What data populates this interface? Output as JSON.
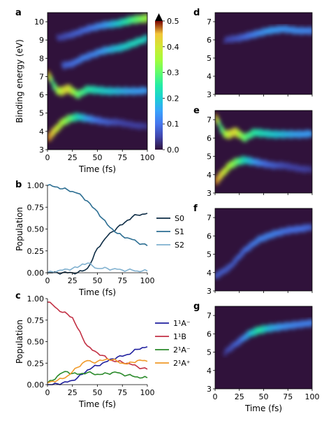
{
  "chart_data": [
    {
      "panel": "a",
      "type": "heatmap",
      "xlabel": "Time (fs)",
      "ylabel": "Binding energy (eV)",
      "xlim": [
        0,
        100
      ],
      "ylim": [
        3,
        10.5
      ],
      "xticks": [
        "0",
        "25",
        "50",
        "75",
        "100"
      ],
      "yticks": [
        "3",
        "4",
        "5",
        "6",
        "7",
        "8",
        "9",
        "10"
      ],
      "colorbar": {
        "min": 0.0,
        "max": 0.5,
        "ticks": [
          "0.0",
          "0.1",
          "0.2",
          "0.3",
          "0.4",
          "0.5"
        ]
      },
      "bands": [
        {
          "t": [
            0,
            3,
            8,
            15,
            22,
            30,
            40,
            50,
            60,
            70,
            80,
            90,
            100
          ],
          "e": [
            3.6,
            3.8,
            4.1,
            4.5,
            4.7,
            4.8,
            4.7,
            4.6,
            4.5,
            4.5,
            4.4,
            4.3,
            4.3
          ],
          "intensity": [
            0.5,
            0.45,
            0.4,
            0.35,
            0.3,
            0.22,
            0.15,
            0.1,
            0.08,
            0.06,
            0.05,
            0.05,
            0.04
          ]
        },
        {
          "t": [
            0,
            2,
            5,
            10,
            15,
            20,
            25,
            30,
            40,
            50,
            60,
            70,
            80,
            90,
            100
          ],
          "e": [
            7.1,
            7.05,
            6.6,
            6.2,
            6.2,
            6.35,
            6.2,
            6.0,
            6.3,
            6.25,
            6.2,
            6.2,
            6.2,
            6.2,
            6.25
          ],
          "intensity": [
            0.5,
            0.4,
            0.25,
            0.35,
            0.4,
            0.42,
            0.35,
            0.3,
            0.25,
            0.22,
            0.2,
            0.18,
            0.16,
            0.15,
            0.15
          ]
        },
        {
          "t": [
            15,
            25,
            35,
            45,
            55,
            65,
            75,
            85,
            95,
            100
          ],
          "e": [
            7.6,
            7.7,
            8.0,
            8.2,
            8.4,
            8.5,
            8.6,
            8.8,
            9.0,
            9.1
          ],
          "intensity": [
            0.08,
            0.1,
            0.12,
            0.12,
            0.15,
            0.18,
            0.2,
            0.22,
            0.22,
            0.2
          ]
        },
        {
          "t": [
            10,
            25,
            40,
            55,
            70,
            85,
            100
          ],
          "e": [
            9.1,
            9.3,
            9.6,
            9.8,
            9.9,
            10.1,
            10.2
          ],
          "intensity": [
            0.05,
            0.08,
            0.1,
            0.14,
            0.2,
            0.28,
            0.35
          ]
        }
      ]
    },
    {
      "panel": "b",
      "type": "line",
      "xlabel": "Time (fs)",
      "ylabel": "Population",
      "xlim": [
        0,
        100
      ],
      "ylim": [
        0,
        1.0
      ],
      "xticks": [
        "0",
        "25",
        "50",
        "75",
        "100"
      ],
      "yticks": [
        "0.00",
        "0.25",
        "0.50",
        "0.75",
        "1.00"
      ],
      "legend": "right",
      "x": [
        0,
        5,
        10,
        15,
        20,
        25,
        30,
        35,
        40,
        45,
        50,
        55,
        60,
        65,
        70,
        75,
        80,
        85,
        90,
        95,
        100
      ],
      "series": [
        {
          "name": "S0",
          "color": "#0d2c45",
          "values": [
            0.0,
            0.0,
            0.0,
            0.0,
            0.0,
            0.0,
            0.0,
            0.02,
            0.05,
            0.15,
            0.28,
            0.35,
            0.42,
            0.47,
            0.52,
            0.55,
            0.6,
            0.64,
            0.66,
            0.67,
            0.68
          ]
        },
        {
          "name": "S1",
          "color": "#2c6e92",
          "values": [
            1.0,
            0.99,
            0.98,
            0.96,
            0.95,
            0.93,
            0.91,
            0.87,
            0.82,
            0.75,
            0.7,
            0.62,
            0.55,
            0.5,
            0.45,
            0.42,
            0.4,
            0.38,
            0.35,
            0.33,
            0.31
          ]
        },
        {
          "name": "S2",
          "color": "#7fb0cf",
          "values": [
            0.0,
            0.01,
            0.02,
            0.03,
            0.04,
            0.05,
            0.06,
            0.1,
            0.11,
            0.08,
            0.05,
            0.05,
            0.05,
            0.04,
            0.04,
            0.03,
            0.03,
            0.03,
            0.02,
            0.02,
            0.02
          ]
        }
      ]
    },
    {
      "panel": "c",
      "type": "line",
      "xlabel": "Time (fs)",
      "ylabel": "Population",
      "xlim": [
        0,
        100
      ],
      "ylim": [
        0,
        1.0
      ],
      "xticks": [
        "0",
        "25",
        "50",
        "75",
        "100"
      ],
      "yticks": [
        "0.00",
        "0.25",
        "0.50",
        "0.75",
        "1.00"
      ],
      "legend": "right",
      "x": [
        0,
        5,
        10,
        15,
        20,
        25,
        30,
        35,
        40,
        45,
        50,
        55,
        60,
        65,
        70,
        75,
        80,
        85,
        90,
        95,
        100
      ],
      "series": [
        {
          "name": "1¹A⁻",
          "color": "#1f1f9e",
          "values": [
            0.0,
            0.0,
            0.01,
            0.02,
            0.03,
            0.05,
            0.08,
            0.12,
            0.17,
            0.2,
            0.22,
            0.25,
            0.27,
            0.3,
            0.32,
            0.33,
            0.35,
            0.38,
            0.41,
            0.43,
            0.44
          ]
        },
        {
          "name": "1¹B",
          "color": "#c23044",
          "values": [
            0.96,
            0.93,
            0.88,
            0.84,
            0.82,
            0.78,
            0.66,
            0.55,
            0.45,
            0.4,
            0.37,
            0.34,
            0.3,
            0.28,
            0.27,
            0.26,
            0.25,
            0.23,
            0.21,
            0.19,
            0.18
          ]
        },
        {
          "name": "2¹A⁻",
          "color": "#2a8a2a",
          "values": [
            0.02,
            0.05,
            0.1,
            0.14,
            0.15,
            0.13,
            0.12,
            0.13,
            0.14,
            0.13,
            0.12,
            0.12,
            0.13,
            0.14,
            0.14,
            0.12,
            0.11,
            0.1,
            0.09,
            0.08,
            0.08
          ]
        },
        {
          "name": "2¹A⁺",
          "color": "#f09a2a",
          "values": [
            0.02,
            0.04,
            0.05,
            0.07,
            0.1,
            0.15,
            0.2,
            0.25,
            0.28,
            0.26,
            0.27,
            0.28,
            0.3,
            0.29,
            0.27,
            0.25,
            0.24,
            0.26,
            0.28,
            0.28,
            0.27
          ]
        }
      ]
    },
    {
      "panel": "d",
      "type": "heatmap",
      "xlim": [
        0,
        100
      ],
      "ylim": [
        3,
        7.5
      ],
      "yticks": [
        "3",
        "4",
        "5",
        "6",
        "7"
      ],
      "bands": [
        {
          "t": [
            10,
            25,
            40,
            55,
            70,
            85,
            100
          ],
          "e": [
            6.0,
            6.1,
            6.3,
            6.5,
            6.6,
            6.5,
            6.5
          ],
          "intensity": [
            0.05,
            0.08,
            0.12,
            0.15,
            0.14,
            0.13,
            0.12
          ]
        }
      ]
    },
    {
      "panel": "e",
      "type": "heatmap",
      "xlim": [
        0,
        100
      ],
      "ylim": [
        3,
        7.5
      ],
      "yticks": [
        "3",
        "4",
        "5",
        "6",
        "7"
      ],
      "bands": [
        {
          "t": [
            0,
            3,
            8,
            15,
            22,
            30,
            40,
            50,
            60,
            70,
            80,
            90,
            100
          ],
          "e": [
            3.6,
            3.8,
            4.1,
            4.5,
            4.7,
            4.8,
            4.7,
            4.6,
            4.5,
            4.5,
            4.4,
            4.3,
            4.3
          ],
          "intensity": [
            0.5,
            0.45,
            0.4,
            0.35,
            0.3,
            0.22,
            0.15,
            0.1,
            0.08,
            0.06,
            0.05,
            0.05,
            0.04
          ]
        },
        {
          "t": [
            0,
            2,
            5,
            10,
            15,
            20,
            25,
            30,
            40,
            50,
            60,
            70,
            80,
            90,
            100
          ],
          "e": [
            7.1,
            7.05,
            6.6,
            6.2,
            6.2,
            6.35,
            6.2,
            6.0,
            6.3,
            6.25,
            6.2,
            6.2,
            6.2,
            6.2,
            6.25
          ],
          "intensity": [
            0.5,
            0.4,
            0.25,
            0.35,
            0.4,
            0.42,
            0.35,
            0.3,
            0.25,
            0.22,
            0.2,
            0.18,
            0.16,
            0.15,
            0.15
          ]
        }
      ]
    },
    {
      "panel": "f",
      "type": "heatmap",
      "xlim": [
        0,
        100
      ],
      "ylim": [
        3,
        7.5
      ],
      "yticks": [
        "3",
        "4",
        "5",
        "6",
        "7"
      ],
      "bands": [
        {
          "t": [
            0,
            15,
            30,
            45,
            60,
            75,
            90,
            100
          ],
          "e": [
            3.8,
            4.3,
            5.2,
            5.8,
            6.1,
            6.3,
            6.4,
            6.5
          ],
          "intensity": [
            0.08,
            0.08,
            0.1,
            0.12,
            0.12,
            0.1,
            0.1,
            0.08
          ]
        }
      ]
    },
    {
      "panel": "g",
      "type": "heatmap",
      "xlabel": "Time (fs)",
      "xlim": [
        0,
        100
      ],
      "ylim": [
        3,
        7.5
      ],
      "xticks": [
        "0",
        "25",
        "50",
        "75",
        "100"
      ],
      "yticks": [
        "3",
        "4",
        "5",
        "6",
        "7"
      ],
      "bands": [
        {
          "t": [
            10,
            25,
            35,
            45,
            55,
            70,
            85,
            100
          ],
          "e": [
            5.0,
            5.6,
            6.0,
            6.2,
            6.3,
            6.4,
            6.5,
            6.6
          ],
          "intensity": [
            0.05,
            0.1,
            0.18,
            0.25,
            0.18,
            0.14,
            0.12,
            0.12
          ]
        }
      ]
    }
  ]
}
